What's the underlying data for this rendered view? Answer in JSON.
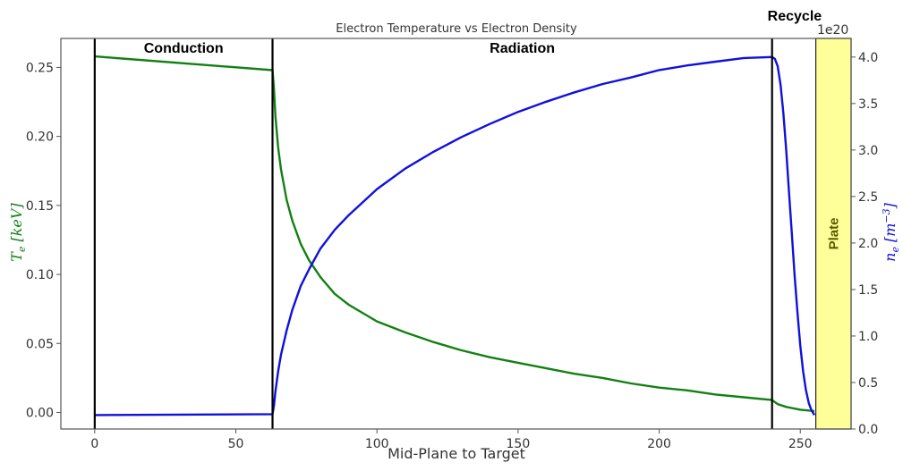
{
  "chart_data": {
    "type": "line",
    "title": "Electron Temperature vs Electron Density",
    "xlabel": "Mid-Plane to Target",
    "xlim": [
      -12,
      268
    ],
    "xticks": [
      0,
      50,
      100,
      150,
      200,
      250
    ],
    "left_axis": {
      "ylabel_main": "T",
      "ylabel_sub": "e",
      "ylabel_unit": "[keV]",
      "color": "#138013",
      "ylim": [
        -0.012,
        0.271
      ],
      "ticks": [
        "0.00",
        "0.05",
        "0.10",
        "0.15",
        "0.20",
        "0.25"
      ],
      "tick_values": [
        0,
        0.05,
        0.1,
        0.15,
        0.2,
        0.25
      ]
    },
    "right_axis": {
      "ylabel_main": "n",
      "ylabel_sub": "e",
      "ylabel_unit": "[m",
      "ylabel_exp": "−3",
      "ylabel_close": "]",
      "color": "#1010dd",
      "offset_text": "1e20",
      "ylim": [
        0.0,
        4.2
      ],
      "ticks": [
        "0.0",
        "0.5",
        "1.0",
        "1.5",
        "2.0",
        "2.5",
        "3.0",
        "3.5",
        "4.0"
      ],
      "tick_values": [
        0,
        0.5,
        1.0,
        1.5,
        2.0,
        2.5,
        3.0,
        3.5,
        4.0
      ]
    },
    "series": [
      {
        "name": "T_e",
        "axis": "left",
        "color": "#138013",
        "x": [
          0,
          63,
          63.5,
          64,
          65,
          66,
          68,
          70,
          73,
          76,
          80,
          85,
          90,
          100,
          110,
          120,
          130,
          140,
          150,
          160,
          170,
          180,
          190,
          200,
          210,
          220,
          230,
          240,
          242,
          245,
          250,
          255
        ],
        "y": [
          0.258,
          0.248,
          0.235,
          0.215,
          0.192,
          0.176,
          0.154,
          0.139,
          0.122,
          0.11,
          0.098,
          0.086,
          0.078,
          0.066,
          0.058,
          0.051,
          0.045,
          0.04,
          0.036,
          0.032,
          0.028,
          0.025,
          0.021,
          0.018,
          0.016,
          0.013,
          0.011,
          0.009,
          0.006,
          0.004,
          0.002,
          0.001
        ]
      },
      {
        "name": "n_e",
        "axis": "right",
        "color": "#1010dd",
        "x": [
          0,
          63,
          63.5,
          64,
          65,
          66,
          68,
          70,
          73,
          76,
          80,
          85,
          90,
          100,
          110,
          120,
          130,
          140,
          150,
          160,
          170,
          180,
          190,
          200,
          210,
          220,
          230,
          240,
          241,
          242,
          243,
          244,
          245,
          246,
          247,
          248,
          249,
          250,
          251,
          252,
          253,
          254,
          255
        ],
        "y": [
          0.15,
          0.16,
          0.25,
          0.4,
          0.62,
          0.8,
          1.06,
          1.28,
          1.54,
          1.72,
          1.94,
          2.14,
          2.3,
          2.58,
          2.8,
          2.98,
          3.14,
          3.28,
          3.41,
          3.52,
          3.62,
          3.71,
          3.78,
          3.86,
          3.91,
          3.95,
          3.99,
          4.0,
          3.98,
          3.9,
          3.7,
          3.4,
          3.0,
          2.55,
          2.1,
          1.65,
          1.25,
          0.9,
          0.62,
          0.42,
          0.28,
          0.2,
          0.15
        ]
      }
    ],
    "vlines": [
      0,
      63,
      240
    ],
    "regions": [
      {
        "label": "Conduction",
        "x": 31.5,
        "above": false
      },
      {
        "label": "Radiation",
        "x": 151.5,
        "above": false
      },
      {
        "label": "Recycle",
        "x": 248,
        "above": true
      }
    ],
    "plate": {
      "label": "Plate",
      "x0": 255.5,
      "x1": 268,
      "color": "#ffff99"
    }
  }
}
